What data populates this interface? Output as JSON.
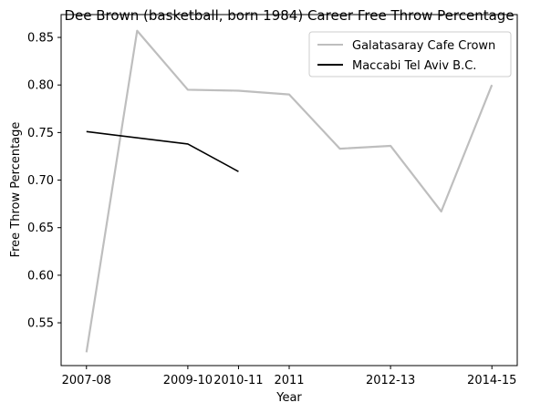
{
  "chart_data": {
    "type": "line",
    "title": "Dee Brown (basketball, born 1984) Career Free Throw Percentage",
    "xlabel": "Year",
    "ylabel": "Free Throw Percentage",
    "x_tick_labels": [
      "2007-08",
      "2009-10",
      "2010-11",
      "2011",
      "2012-13",
      "2014-15"
    ],
    "ylim": [
      0.505,
      0.874
    ],
    "y_ticks": [
      0.55,
      0.6,
      0.65,
      0.7,
      0.75,
      0.8,
      0.85
    ],
    "y_tick_labels": [
      "0.55",
      "0.60",
      "0.65",
      "0.70",
      "0.75",
      "0.80",
      "0.85"
    ],
    "grid": false,
    "legend_position": "upper right",
    "series": [
      {
        "name": "Galatasaray Cafe Crown",
        "color": "#bebebe",
        "points": [
          {
            "x": "2007-08",
            "y": 0.519
          },
          {
            "x": "2008-09",
            "y": 0.857
          },
          {
            "x": "2009-10",
            "y": 0.795
          },
          {
            "x": "2010-11",
            "y": 0.794
          },
          {
            "x": "2011",
            "y": 0.79
          },
          {
            "x": "2011-12",
            "y": 0.733
          },
          {
            "x": "2012-13",
            "y": 0.736
          },
          {
            "x": "2013-14",
            "y": 0.667
          },
          {
            "x": "2014-15",
            "y": 0.8
          }
        ]
      },
      {
        "name": "Maccabi Tel Aviv B.C.",
        "color": "#000000",
        "points": [
          {
            "x": "2007-08",
            "y": 0.751
          },
          {
            "x": "2009-10",
            "y": 0.738
          },
          {
            "x": "2010-11",
            "y": 0.709
          }
        ]
      }
    ]
  }
}
